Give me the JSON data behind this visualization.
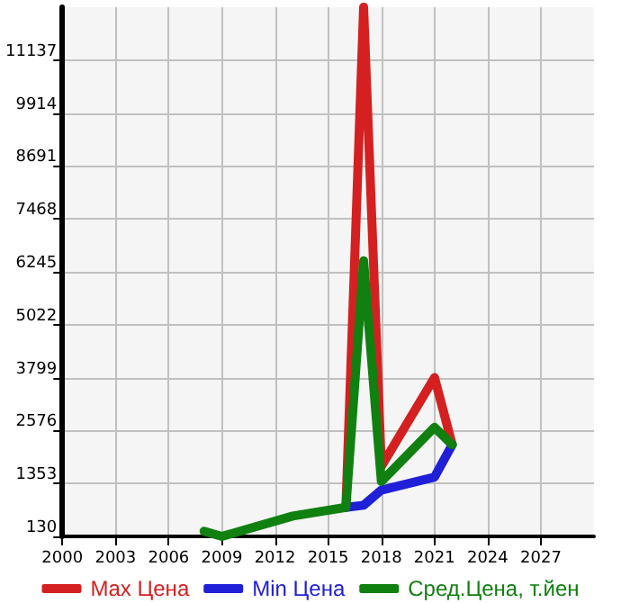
{
  "chart_data": {
    "type": "line",
    "x": [
      2008,
      2009,
      2013,
      2016,
      2017,
      2018,
      2021,
      2022
    ],
    "series": [
      {
        "name": "Max Цена",
        "color": "#d42020",
        "values": [
          null,
          null,
          null,
          800,
          12360,
          1750,
          3800,
          2250
        ]
      },
      {
        "name": "Min Цена",
        "color": "#2020d8",
        "values": [
          null,
          null,
          null,
          800,
          850,
          1200,
          1500,
          2250
        ]
      },
      {
        "name": "Сред.Цена, т.йен",
        "color": "#108010",
        "values": [
          250,
          130,
          600,
          800,
          6500,
          1400,
          2650,
          2250
        ]
      }
    ],
    "xlim": [
      2000,
      2030
    ],
    "xticks": [
      2000,
      2003,
      2006,
      2009,
      2012,
      2015,
      2018,
      2021,
      2024,
      2027
    ],
    "ylim": [
      130,
      12360
    ],
    "yticks": [
      130,
      1353,
      2576,
      3799,
      5022,
      6245,
      7468,
      8691,
      9914,
      11137
    ],
    "grid": true,
    "legend": "bottom",
    "marker": "none",
    "line_style": "solid"
  }
}
